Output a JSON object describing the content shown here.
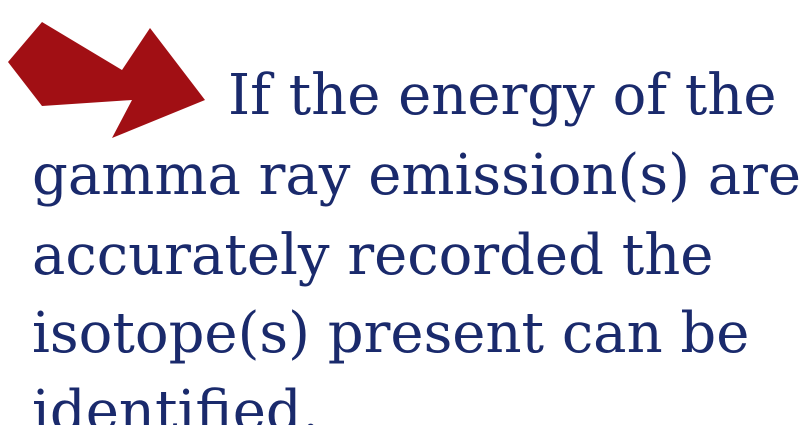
{
  "slide": {
    "lines": [
      "If the energy of the",
      "gamma ray emission(s) are",
      "accurately recorded the",
      "isotope(s) present can be",
      "identified."
    ],
    "colors": {
      "text": "#1a2a6c",
      "arrow": "#a10f14",
      "background": "#ffffff"
    },
    "arrow_icon": "arrow-pointing-down-right-icon"
  }
}
